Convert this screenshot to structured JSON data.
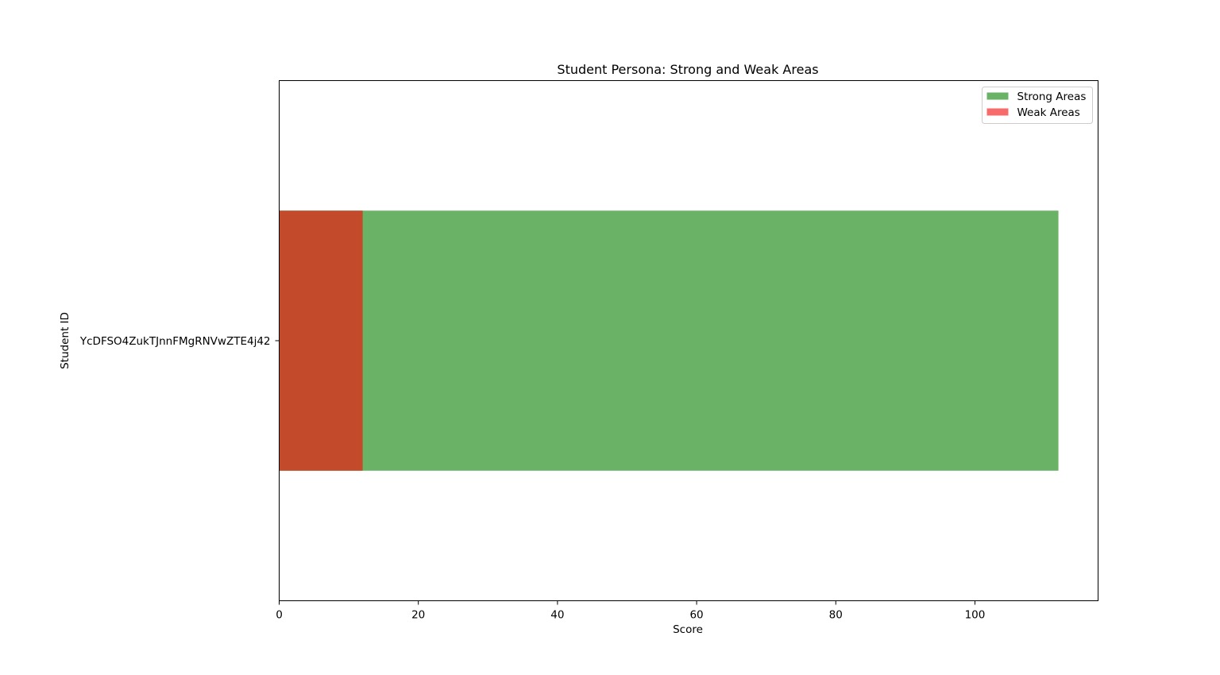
{
  "colors": {
    "strong": "#6ab266",
    "weak": "#f86b6b",
    "overlap": "#c34a2a"
  },
  "chart_data": {
    "type": "bar",
    "orientation": "horizontal",
    "title": "Student Persona: Strong and Weak Areas",
    "xlabel": "Score",
    "ylabel": "Student ID",
    "categories": [
      "YcDFSO4ZukTJnnFMgRNVwZTE4j42"
    ],
    "series": [
      {
        "name": "Strong Areas",
        "values": [
          112
        ]
      },
      {
        "name": "Weak Areas",
        "values": [
          12
        ]
      }
    ],
    "xlim": [
      0,
      117.7
    ],
    "xticks": [
      0,
      20,
      40,
      60,
      80,
      100
    ],
    "xtick_labels": [
      "0",
      "20",
      "40",
      "60",
      "80",
      "100"
    ],
    "grid": false,
    "legend_position": "upper right"
  }
}
